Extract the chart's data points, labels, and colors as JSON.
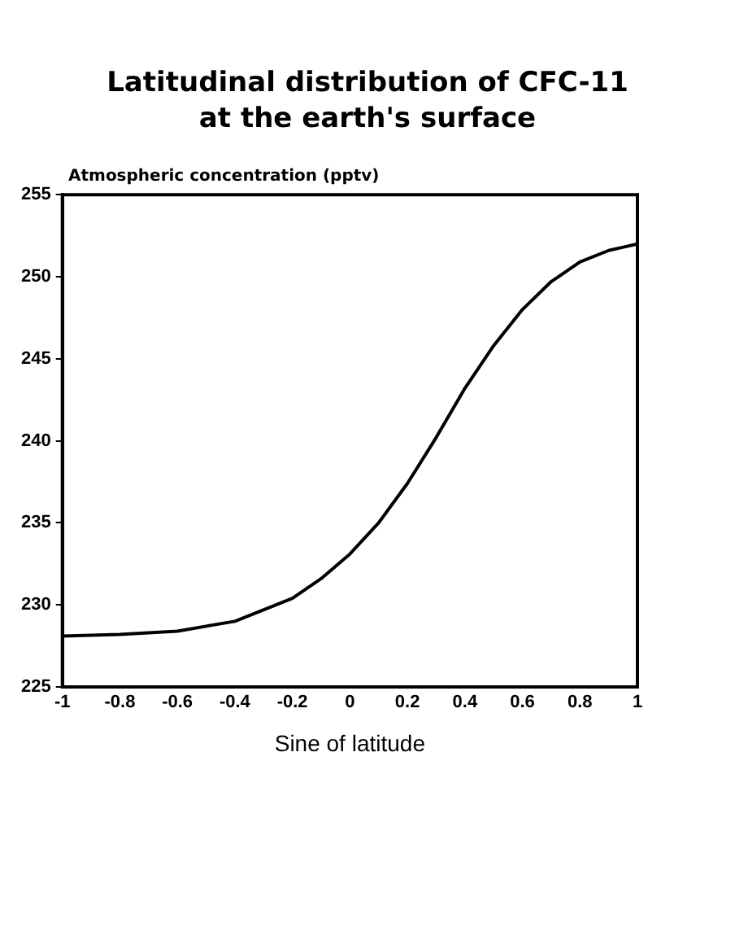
{
  "chart_data": {
    "type": "line",
    "title": "Latitudinal distribution of CFC-11\nat the earth's surface",
    "xlabel": "Sine of latitude",
    "ylabel": "Atmospheric concentration (pptv)",
    "x": [
      -1,
      -0.8,
      -0.6,
      -0.4,
      -0.2,
      -0.1,
      0,
      0.1,
      0.2,
      0.3,
      0.4,
      0.5,
      0.6,
      0.7,
      0.8,
      0.9,
      1
    ],
    "series": [
      {
        "color": "#000000",
        "values": [
          228.1,
          228.2,
          228.4,
          229.0,
          230.4,
          231.6,
          233.1,
          235.0,
          237.4,
          240.2,
          243.2,
          245.8,
          248.0,
          249.7,
          250.9,
          251.6,
          252.0
        ]
      }
    ],
    "xlim": [
      -1,
      1
    ],
    "xticks": [
      -1,
      -0.8,
      -0.6,
      -0.4,
      -0.2,
      0,
      0.2,
      0.4,
      0.6,
      0.8,
      1
    ],
    "ylim": [
      225,
      255
    ],
    "yticks": [
      225,
      230,
      235,
      240,
      245,
      250,
      255
    ],
    "grid": false,
    "legend": false,
    "marker": "none",
    "line_style": "solid"
  }
}
